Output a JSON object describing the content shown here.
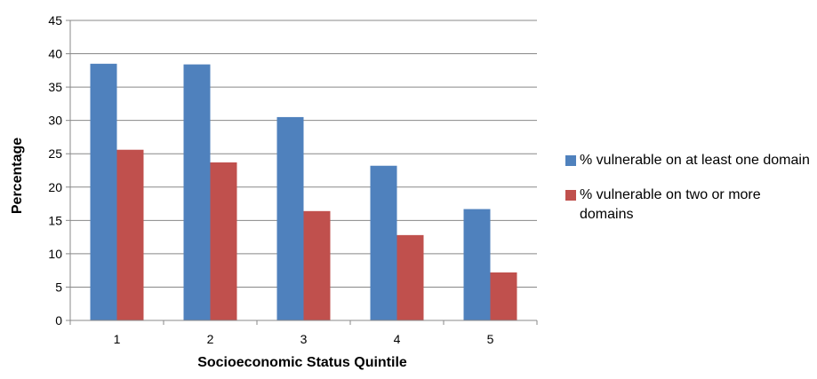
{
  "chart_data": {
    "type": "bar",
    "categories": [
      "1",
      "2",
      "3",
      "4",
      "5"
    ],
    "series": [
      {
        "name": "% vulnerable on at least one domain",
        "values": [
          38.5,
          38.4,
          30.5,
          23.2,
          16.7
        ],
        "color": "#4f81bd"
      },
      {
        "name": "% vulnerable on two or more domains",
        "values": [
          25.6,
          23.7,
          16.4,
          12.8,
          7.2
        ],
        "color": "#c0504d"
      }
    ],
    "xlabel": "Socioeconomic Status Quintile",
    "ylabel": "Percentage",
    "ylim": [
      0,
      45
    ],
    "yticks": [
      "0",
      "5",
      "10",
      "15",
      "20",
      "25",
      "30",
      "35",
      "40",
      "45"
    ],
    "grid": true,
    "legend_position": "right"
  }
}
